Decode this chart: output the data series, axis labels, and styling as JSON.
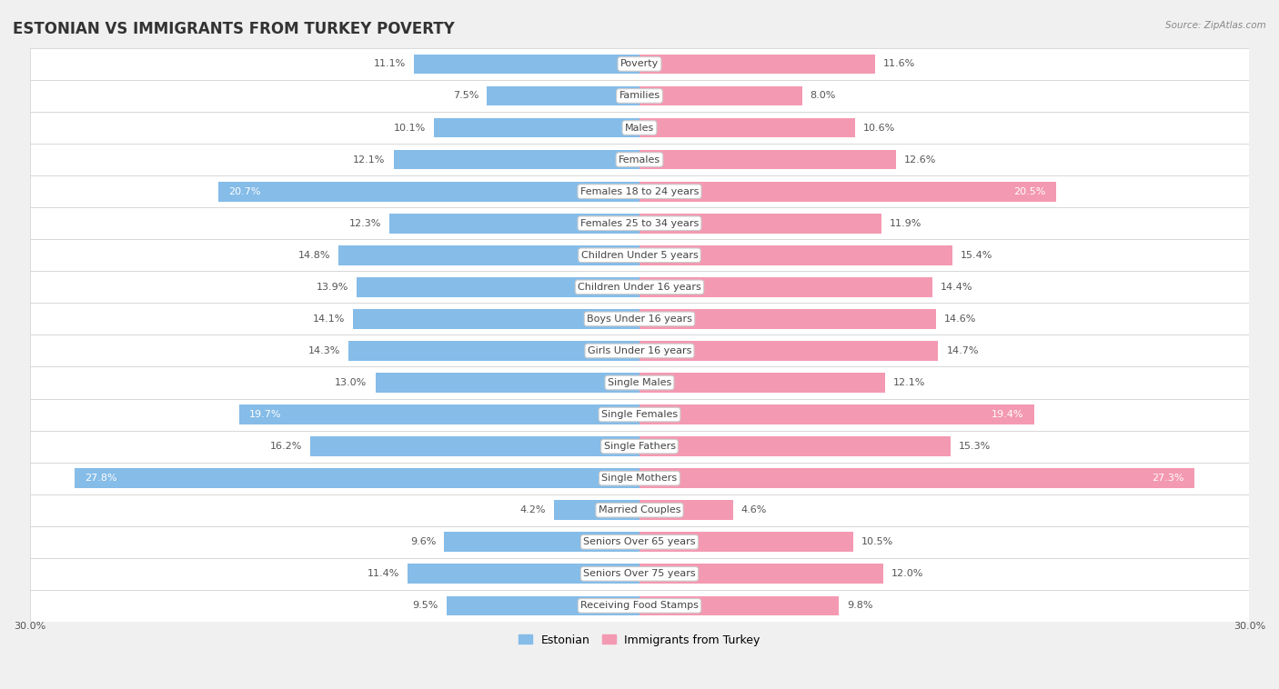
{
  "title": "ESTONIAN VS IMMIGRANTS FROM TURKEY POVERTY",
  "source": "Source: ZipAtlas.com",
  "categories": [
    "Poverty",
    "Families",
    "Males",
    "Females",
    "Females 18 to 24 years",
    "Females 25 to 34 years",
    "Children Under 5 years",
    "Children Under 16 years",
    "Boys Under 16 years",
    "Girls Under 16 years",
    "Single Males",
    "Single Females",
    "Single Fathers",
    "Single Mothers",
    "Married Couples",
    "Seniors Over 65 years",
    "Seniors Over 75 years",
    "Receiving Food Stamps"
  ],
  "estonian_values": [
    11.1,
    7.5,
    10.1,
    12.1,
    20.7,
    12.3,
    14.8,
    13.9,
    14.1,
    14.3,
    13.0,
    19.7,
    16.2,
    27.8,
    4.2,
    9.6,
    11.4,
    9.5
  ],
  "turkey_values": [
    11.6,
    8.0,
    10.6,
    12.6,
    20.5,
    11.9,
    15.4,
    14.4,
    14.6,
    14.7,
    12.1,
    19.4,
    15.3,
    27.3,
    4.6,
    10.5,
    12.0,
    9.8
  ],
  "estonian_color": "#85BCE8",
  "turkey_color": "#F499B2",
  "axis_limit": 30.0,
  "background_color": "#f0f0f0",
  "bar_bg_color": "#ffffff",
  "row_separator_color": "#d0d0d0",
  "bar_height": 0.62,
  "legend_label_estonian": "Estonian",
  "legend_label_turkey": "Immigrants from Turkey",
  "title_fontsize": 12,
  "value_fontsize": 8,
  "category_fontsize": 8,
  "white_text_threshold": 17.5
}
